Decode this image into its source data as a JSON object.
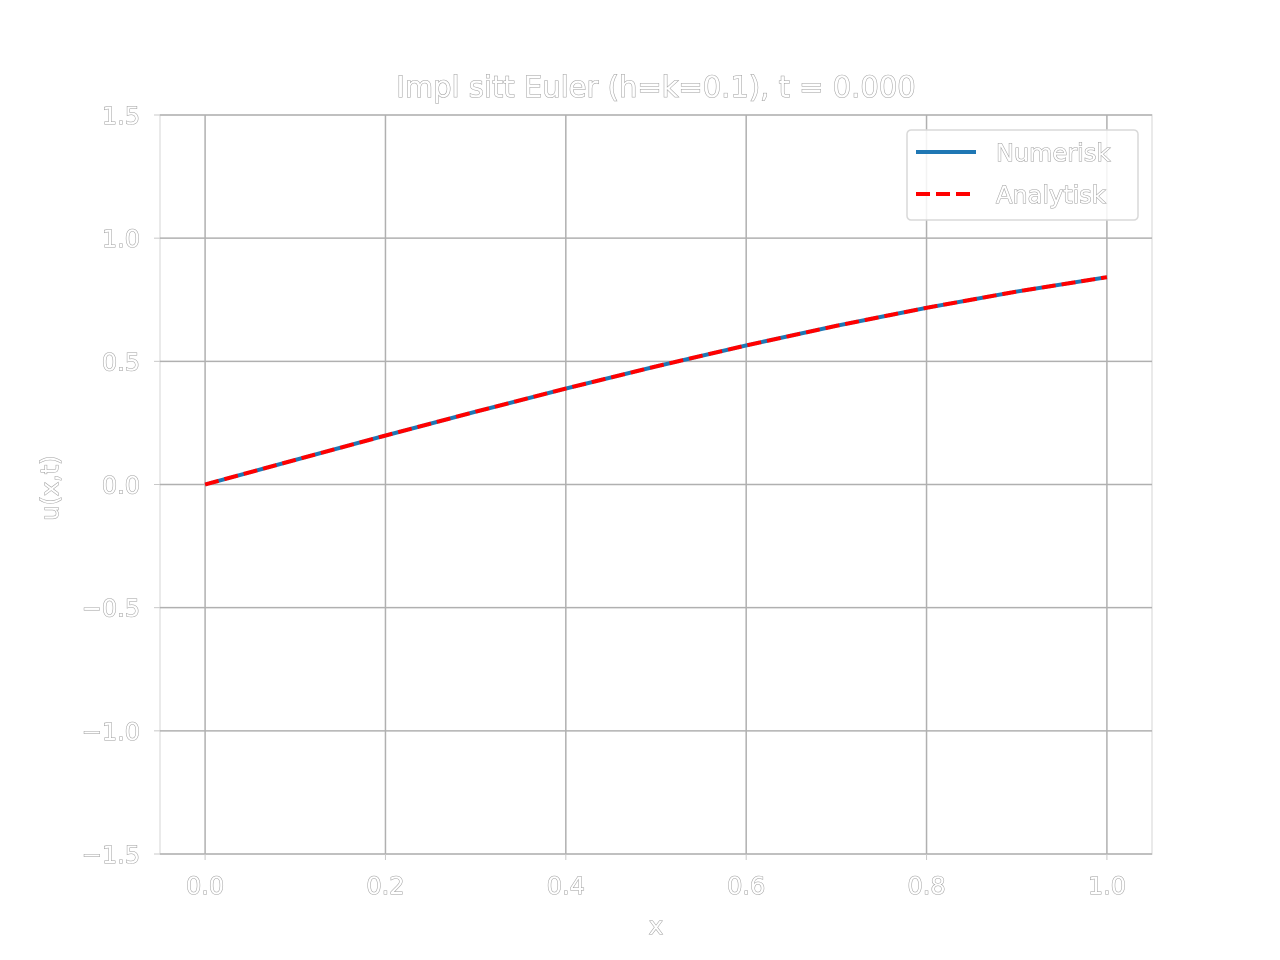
{
  "chart_data": {
    "type": "line",
    "title": "Impl sitt Euler (h=k=0.1), t = 0.000",
    "xlabel": "x",
    "ylabel": "u(x,t)",
    "xlim": [
      -0.05,
      1.05
    ],
    "ylim": [
      -1.5,
      1.5
    ],
    "xticks": [
      "0.0",
      "0.2",
      "0.4",
      "0.6",
      "0.8",
      "1.0"
    ],
    "yticks": [
      "−1.5",
      "−1.0",
      "−0.5",
      "0.0",
      "0.5",
      "1.0",
      "1.5"
    ],
    "grid": true,
    "legend_position": "top-right",
    "x": [
      0.0,
      0.1,
      0.2,
      0.3,
      0.4,
      0.5,
      0.6,
      0.7,
      0.8,
      0.9,
      1.0
    ],
    "series": [
      {
        "name": "Numerisk",
        "style": "solid",
        "color": "#1f77b4",
        "values": [
          0.0,
          0.0998,
          0.1987,
          0.2955,
          0.3894,
          0.4794,
          0.5646,
          0.6442,
          0.7174,
          0.7833,
          0.8415
        ]
      },
      {
        "name": "Analytisk",
        "style": "dashed",
        "color": "#ff0000",
        "values": [
          0.0,
          0.0998,
          0.1987,
          0.2955,
          0.3894,
          0.4794,
          0.5646,
          0.6442,
          0.7174,
          0.7833,
          0.8415
        ]
      }
    ]
  }
}
